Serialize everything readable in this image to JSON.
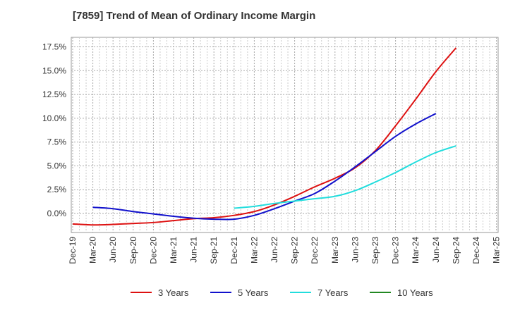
{
  "chart_data": {
    "type": "line",
    "title": "[7859]  Trend of Mean of Ordinary Income Margin",
    "xlabel": "",
    "ylabel": "",
    "x": [
      "Dec-19",
      "Mar-20",
      "Jun-20",
      "Sep-20",
      "Dec-20",
      "Mar-21",
      "Jun-21",
      "Sep-21",
      "Dec-21",
      "Mar-22",
      "Jun-22",
      "Sep-22",
      "Dec-22",
      "Mar-23",
      "Jun-23",
      "Sep-23",
      "Dec-23",
      "Mar-24",
      "Jun-24",
      "Sep-24",
      "Dec-24",
      "Mar-25"
    ],
    "ylim": [
      -2.0,
      18.5
    ],
    "yticks": [
      0.0,
      2.5,
      5.0,
      7.5,
      10.0,
      12.5,
      15.0,
      17.5
    ],
    "ytick_labels": [
      "0.0%",
      "2.5%",
      "5.0%",
      "7.5%",
      "10.0%",
      "12.5%",
      "15.0%",
      "17.5%"
    ],
    "grid": true,
    "legend_position": "bottom",
    "series": [
      {
        "name": "3 Years",
        "color": "#dd1111",
        "values": [
          -1.1,
          -1.2,
          -1.15,
          -1.05,
          -0.95,
          -0.75,
          -0.55,
          -0.45,
          -0.2,
          0.2,
          0.9,
          1.8,
          2.8,
          3.7,
          4.8,
          6.6,
          9.2,
          12.0,
          14.9,
          17.4,
          null,
          null
        ]
      },
      {
        "name": "5 Years",
        "color": "#1111cc",
        "values": [
          null,
          0.65,
          0.5,
          0.2,
          -0.05,
          -0.3,
          -0.5,
          -0.6,
          -0.6,
          -0.2,
          0.5,
          1.3,
          2.1,
          3.4,
          4.9,
          6.5,
          8.1,
          9.4,
          10.5,
          null,
          null,
          null
        ]
      },
      {
        "name": "7 Years",
        "color": "#22dddd",
        "values": [
          null,
          null,
          null,
          null,
          null,
          null,
          null,
          null,
          0.55,
          0.75,
          1.05,
          1.3,
          1.55,
          1.8,
          2.4,
          3.3,
          4.3,
          5.4,
          6.4,
          7.1,
          null,
          null
        ]
      },
      {
        "name": "10 Years",
        "color": "#228822",
        "values": [
          null,
          null,
          null,
          null,
          null,
          null,
          null,
          null,
          null,
          null,
          null,
          null,
          null,
          null,
          null,
          null,
          null,
          null,
          null,
          null,
          null,
          null
        ]
      }
    ]
  }
}
